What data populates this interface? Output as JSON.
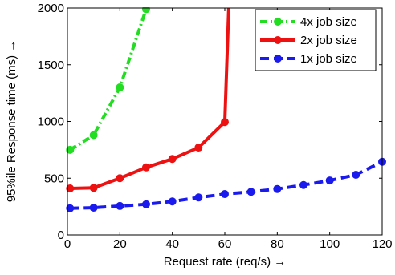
{
  "chart_data": {
    "type": "line",
    "xlabel": "Request rate (req/s) →",
    "ylabel": "95%ile Response time (ms) →",
    "xlim": [
      0,
      120
    ],
    "ylim": [
      0,
      2000
    ],
    "xticks": [
      0,
      20,
      40,
      60,
      80,
      100,
      120
    ],
    "yticks": [
      0,
      500,
      1000,
      1500,
      2000
    ],
    "grid": false,
    "legend_position": "top-right",
    "series": [
      {
        "name": "4x job size",
        "color": "#22dd22",
        "style": "dash-dot",
        "x": [
          1,
          10,
          20,
          30
        ],
        "y": [
          750,
          880,
          1300,
          1990
        ]
      },
      {
        "name": "2x job size",
        "color": "#ee1111",
        "style": "solid",
        "x": [
          1,
          10,
          20,
          30,
          40,
          50,
          60,
          61.5
        ],
        "y": [
          410,
          415,
          500,
          595,
          670,
          770,
          995,
          2000
        ]
      },
      {
        "name": "1x job size",
        "color": "#1a1aee",
        "style": "dashed",
        "x": [
          1,
          10,
          20,
          30,
          40,
          50,
          60,
          70,
          80,
          90,
          100,
          110,
          120
        ],
        "y": [
          235,
          240,
          255,
          270,
          295,
          330,
          360,
          380,
          405,
          440,
          480,
          530,
          645
        ]
      }
    ]
  }
}
